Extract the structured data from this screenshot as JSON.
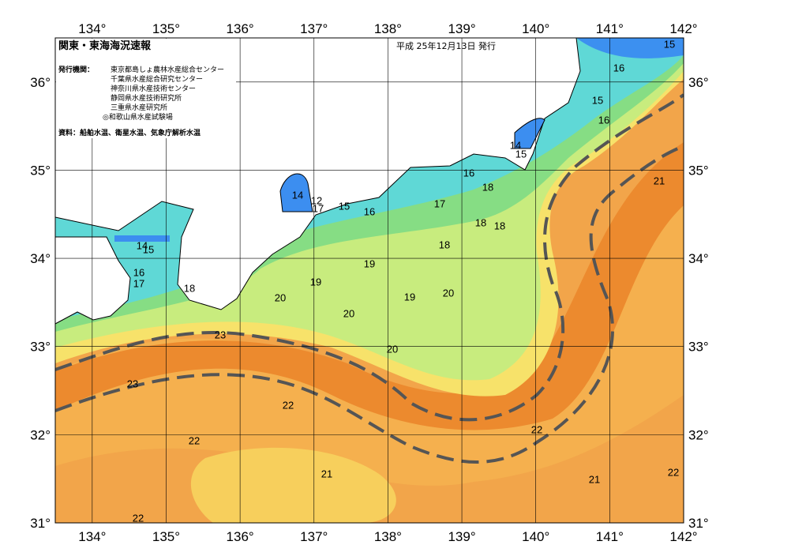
{
  "header": {
    "title": "関東・東海海況速報",
    "date": "平成 25年12月13日 発行",
    "issuer_label": "発行機関：",
    "issuers": [
      "東京都島しょ農林水産総合センター",
      "千葉県水産総合研究センター",
      "神奈川県水産技術センター",
      "静岡県水産技術研究所",
      "三重県水産研究所",
      "◎和歌山県水産試験場"
    ],
    "source": "資料：船舶水温、衛星水温、気象庁解析水温"
  },
  "map": {
    "lon_ticks": [
      {
        "value": 134,
        "label": "134°"
      },
      {
        "value": 135,
        "label": "135°"
      },
      {
        "value": 136,
        "label": "136°"
      },
      {
        "value": 137,
        "label": "137°"
      },
      {
        "value": 138,
        "label": "138°"
      },
      {
        "value": 139,
        "label": "139°"
      },
      {
        "value": 140,
        "label": "140°"
      },
      {
        "value": 141,
        "label": "141°"
      },
      {
        "value": 142,
        "label": "142°"
      }
    ],
    "lat_ticks": [
      {
        "value": 31,
        "label": "31°"
      },
      {
        "value": 32,
        "label": "32°"
      },
      {
        "value": 33,
        "label": "33°"
      },
      {
        "value": 34,
        "label": "34°"
      },
      {
        "value": 35,
        "label": "35°"
      },
      {
        "value": 36,
        "label": "36°"
      }
    ],
    "lon_range": [
      133.5,
      142
    ],
    "lat_range": [
      31,
      36.5
    ],
    "contour_labels": [
      "15",
      "16",
      "15",
      "16",
      "14",
      "15",
      "21",
      "16",
      "18",
      "17",
      "16",
      "15",
      "14",
      "12",
      "17",
      "18",
      "18",
      "18",
      "14",
      "15",
      "16",
      "17",
      "18",
      "19",
      "19",
      "19",
      "20",
      "20",
      "20",
      "23",
      "20",
      "23",
      "22",
      "22",
      "22",
      "21",
      "21",
      "22",
      "22"
    ]
  }
}
